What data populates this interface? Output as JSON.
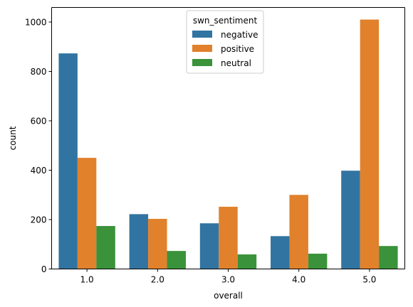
{
  "chart_data": {
    "type": "bar",
    "title": "",
    "xlabel": "overall",
    "ylabel": "count",
    "categories": [
      "1.0",
      "2.0",
      "3.0",
      "4.0",
      "5.0"
    ],
    "series": [
      {
        "name": "negative",
        "color": "#3274a1",
        "values": [
          873,
          222,
          185,
          133,
          398
        ]
      },
      {
        "name": "positive",
        "color": "#e1812c",
        "values": [
          450,
          203,
          252,
          300,
          1010
        ]
      },
      {
        "name": "neutral",
        "color": "#3a923a",
        "values": [
          174,
          73,
          59,
          62,
          93
        ]
      }
    ],
    "ylim": [
      0,
      1059
    ],
    "yticks": [
      0,
      200,
      400,
      600,
      800,
      1000
    ],
    "grid": false,
    "legend": {
      "title": "swn_sentiment",
      "placement": "top-center"
    }
  }
}
